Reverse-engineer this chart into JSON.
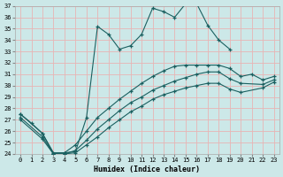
{
  "xlabel": "Humidex (Indice chaleur)",
  "bg_color": "#cce8e8",
  "grid_color": "#e8b4b4",
  "line_color": "#1a6060",
  "xlim": [
    -0.5,
    23.5
  ],
  "ylim": [
    24,
    37
  ],
  "xticks": [
    0,
    1,
    2,
    3,
    4,
    5,
    6,
    7,
    8,
    9,
    10,
    11,
    12,
    13,
    14,
    15,
    16,
    17,
    18,
    19,
    20,
    21,
    22,
    23
  ],
  "yticks": [
    24,
    25,
    26,
    27,
    28,
    29,
    30,
    31,
    32,
    33,
    34,
    35,
    36,
    37
  ],
  "series": [
    {
      "x": [
        0,
        1,
        2,
        3,
        4,
        5,
        6,
        7,
        8,
        9,
        10,
        11,
        12,
        13,
        14,
        15,
        16,
        17,
        18,
        19
      ],
      "y": [
        27.5,
        26.7,
        25.8,
        24.0,
        24.1,
        24.2,
        27.2,
        35.2,
        34.5,
        33.2,
        33.5,
        34.5,
        36.8,
        36.5,
        36.0,
        37.2,
        37.2,
        35.3,
        34.0,
        33.2
      ]
    },
    {
      "x": [
        0,
        2,
        3,
        4,
        5,
        6,
        7,
        8,
        9,
        10,
        11,
        12,
        13,
        14,
        15,
        16,
        17,
        18,
        19,
        20,
        21,
        22,
        23
      ],
      "y": [
        27.5,
        25.8,
        24.1,
        24.1,
        24.8,
        26.0,
        27.2,
        28.0,
        28.8,
        29.5,
        30.2,
        30.8,
        31.3,
        31.7,
        31.8,
        31.8,
        31.8,
        31.8,
        31.5,
        30.8,
        31.0,
        30.5,
        30.8
      ]
    },
    {
      "x": [
        0,
        2,
        3,
        4,
        5,
        6,
        7,
        8,
        9,
        10,
        11,
        12,
        13,
        14,
        15,
        16,
        17,
        18,
        19,
        20,
        22,
        23
      ],
      "y": [
        27.2,
        25.5,
        24.0,
        24.0,
        24.3,
        25.2,
        26.2,
        27.0,
        27.8,
        28.5,
        29.0,
        29.6,
        30.0,
        30.4,
        30.7,
        31.0,
        31.2,
        31.2,
        30.6,
        30.2,
        30.1,
        30.5
      ]
    },
    {
      "x": [
        0,
        2,
        3,
        4,
        5,
        6,
        7,
        8,
        9,
        10,
        11,
        12,
        13,
        14,
        15,
        16,
        17,
        18,
        19,
        20,
        22,
        23
      ],
      "y": [
        27.0,
        25.3,
        24.0,
        24.0,
        24.1,
        24.8,
        25.5,
        26.3,
        27.0,
        27.7,
        28.2,
        28.8,
        29.2,
        29.5,
        29.8,
        30.0,
        30.2,
        30.2,
        29.7,
        29.4,
        29.8,
        30.3
      ]
    }
  ]
}
